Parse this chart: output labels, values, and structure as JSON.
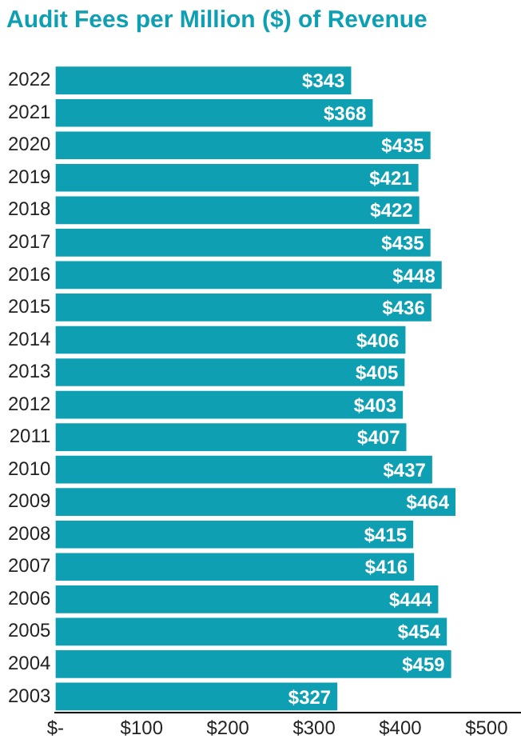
{
  "chart_data": {
    "type": "bar",
    "orientation": "horizontal",
    "title": "Audit Fees per Million ($) of Revenue",
    "categories": [
      "2022",
      "2021",
      "2020",
      "2019",
      "2018",
      "2017",
      "2016",
      "2015",
      "2014",
      "2013",
      "2012",
      "2011",
      "2010",
      "2009",
      "2008",
      "2007",
      "2006",
      "2005",
      "2004",
      "2003"
    ],
    "values": [
      343,
      368,
      435,
      421,
      422,
      435,
      448,
      436,
      406,
      405,
      403,
      407,
      437,
      464,
      415,
      416,
      444,
      454,
      459,
      327
    ],
    "value_labels": [
      "$343",
      "$368",
      "$435",
      "$421",
      "$422",
      "$435",
      "$448",
      "$436",
      "$406",
      "$405",
      "$403",
      "$407",
      "$437",
      "$464",
      "$415",
      "$416",
      "$444",
      "$454",
      "$459",
      "$327"
    ],
    "color": "#0e9fb3",
    "xlim": [
      0,
      540
    ],
    "xticks": [
      {
        "value": 0,
        "label": "$-"
      },
      {
        "value": 100,
        "label": "$100"
      },
      {
        "value": 200,
        "label": "$200"
      },
      {
        "value": 300,
        "label": "$300"
      },
      {
        "value": 400,
        "label": "$400"
      },
      {
        "value": 500,
        "label": "$500"
      }
    ],
    "grid": false,
    "legend": false
  }
}
